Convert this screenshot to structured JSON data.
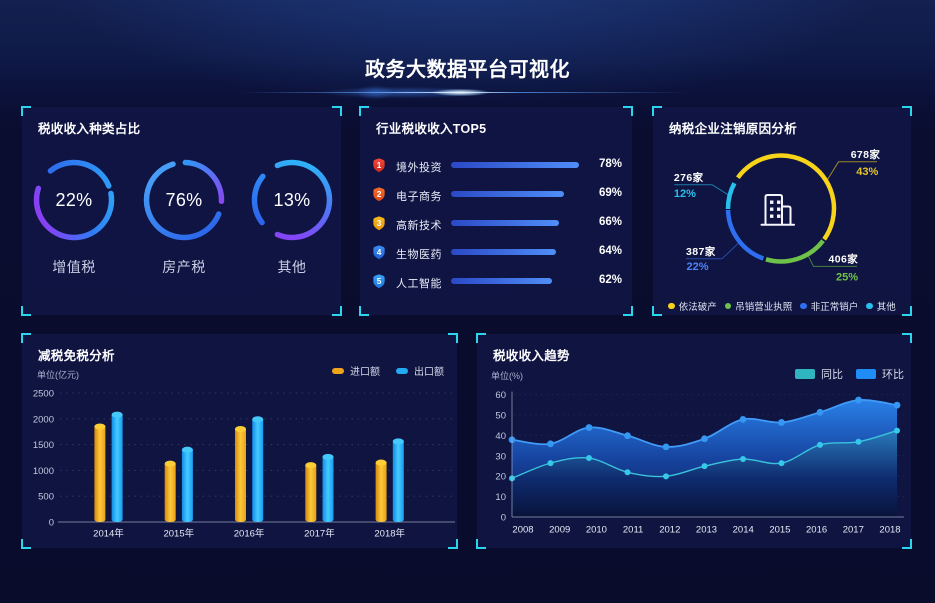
{
  "header": {
    "title": "政务大数据平台可视化"
  },
  "panels": {
    "tax_type": {
      "title": "税收收入种类占比"
    },
    "industry_top5": {
      "title": "行业税收收入TOP5"
    },
    "deregistration": {
      "title": "纳税企业注销原因分析"
    },
    "tax_relief": {
      "title": "减税免税分析",
      "unit": "单位(亿元)"
    },
    "revenue_trend": {
      "title": "税收收入趋势",
      "unit": "单位(%)"
    }
  },
  "colors": {
    "accent_cyan": "#2cd5ee",
    "ring_blue": "#2f7cf5",
    "ring_purple": "#8a42f2",
    "bar_blue_start": "#2b49c6",
    "bar_blue_end": "#4f8ef8"
  },
  "chart_data": [
    {
      "type": "ring",
      "title": "税收收入种类占比",
      "items": [
        {
          "label": "增值税",
          "value": 22,
          "display": "22%"
        },
        {
          "label": "房产税",
          "value": 76,
          "display": "76%"
        },
        {
          "label": "其他",
          "value": 13,
          "display": "13%"
        }
      ]
    },
    {
      "type": "bar",
      "orientation": "horizontal",
      "title": "行业税收收入TOP5",
      "categories": [
        "境外投资",
        "电子商务",
        "高新技术",
        "生物医药",
        "人工智能"
      ],
      "values": [
        78,
        69,
        66,
        64,
        62
      ],
      "value_labels": [
        "78%",
        "69%",
        "66%",
        "64%",
        "62%"
      ],
      "ranks": [
        1,
        2,
        3,
        4,
        5
      ],
      "rank_colors": [
        [
          "#f5483a",
          "#c9271b"
        ],
        [
          "#f4702e",
          "#e04312"
        ],
        [
          "#f7b81e",
          "#e89607"
        ],
        [
          "#3c8ff5",
          "#1d5ed6"
        ],
        [
          "#38a5f7",
          "#1d74e0"
        ]
      ]
    },
    {
      "type": "pie",
      "title": "纳税企业注销原因分析",
      "segments": [
        {
          "label": "依法破产",
          "count": "678家",
          "percent": "43%",
          "color": "#f7d419",
          "pct_color": "#e5c428",
          "arc_deg": [
            144.5,
            -35.5
          ]
        },
        {
          "label": "吊销营业执照",
          "count": "406家",
          "percent": "25%",
          "color": "#6ec24a",
          "pct_color": "#6ec24a",
          "arc_deg": [
            -37.5,
            -106.5
          ]
        },
        {
          "label": "非正常销户",
          "count": "387家",
          "percent": "22%",
          "color": "#2e6ff0",
          "pct_color": "#4b84f5",
          "arc_deg": [
            -109.5,
            -178.5
          ]
        },
        {
          "label": "其他",
          "count": "276家",
          "percent": "12%",
          "color": "#27c0ea",
          "pct_color": "#27c0ea",
          "arc_deg": [
            -179.5,
            -208.5
          ]
        }
      ],
      "legend": [
        "依法破产",
        "吊销营业执照",
        "非正常销户",
        "其他"
      ],
      "center_icon": "building-icon"
    },
    {
      "type": "bar",
      "title": "减税免税分析",
      "ylabel": "单位(亿元)",
      "categories": [
        "2014年",
        "2015年",
        "2016年",
        "2017年",
        "2018年"
      ],
      "series": [
        {
          "name": "进口额",
          "color": "#f0a41a",
          "values": [
            1850,
            1130,
            1800,
            1100,
            1150
          ]
        },
        {
          "name": "出口额",
          "color": "#23aaf2",
          "values": [
            2080,
            1400,
            1990,
            1260,
            1560
          ]
        }
      ],
      "ylim": [
        0,
        2500
      ],
      "ytick_step": 500,
      "grid": "dashed",
      "legend_position": "top-right"
    },
    {
      "type": "area",
      "title": "税收收入趋势",
      "ylabel": "单位(%)",
      "x": [
        "2008",
        "2009",
        "2010",
        "2011",
        "2012",
        "2013",
        "2014",
        "2015",
        "2016",
        "2017",
        "2018"
      ],
      "series": [
        {
          "name": "同比",
          "color": "#35c1cd",
          "values": [
            19,
            26.5,
            29,
            22,
            20,
            25,
            28.5,
            26.5,
            35.5,
            37,
            42.5
          ]
        },
        {
          "name": "环比",
          "color": "#2e8df2",
          "values": [
            38,
            36,
            44,
            40,
            34.5,
            38.5,
            48,
            46.5,
            51.5,
            57.5,
            55
          ]
        }
      ],
      "ylim": [
        0,
        60
      ],
      "ytick_step": 10,
      "smooth": true,
      "legend_position": "top-right"
    }
  ]
}
